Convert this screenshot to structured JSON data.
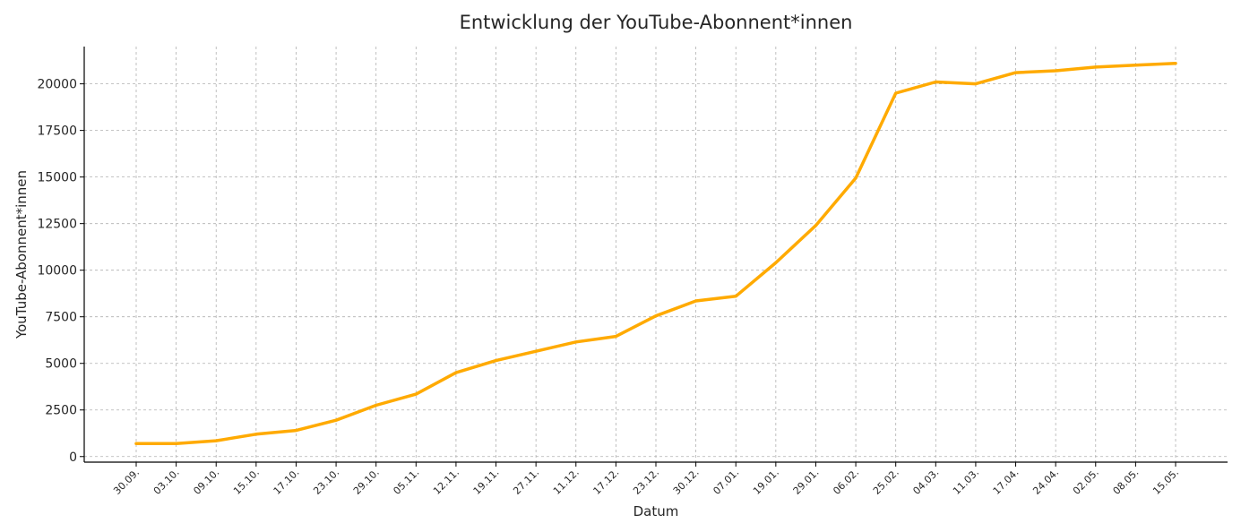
{
  "chart_data": {
    "type": "line",
    "title": "Entwicklung der YouTube-Abonnent*innen",
    "xlabel": "Datum",
    "ylabel": "YouTube-Abonnent*innen",
    "ylim": [
      -300,
      22000
    ],
    "yticks": [
      0,
      2500,
      5000,
      7500,
      10000,
      12500,
      15000,
      17500,
      20000
    ],
    "grid": true,
    "line_color": "#FFAA00",
    "categories": [
      "30.09.",
      "03.10.",
      "09.10.",
      "15.10.",
      "17.10.",
      "23.10.",
      "29.10.",
      "05.11.",
      "12.11.",
      "19.11.",
      "27.11.",
      "11.12.",
      "17.12.",
      "23.12.",
      "30.12.",
      "07.01.",
      "19.01.",
      "29.01.",
      "06.02.",
      "25.02.",
      "04.03.",
      "11.03.",
      "17.04.",
      "24.04.",
      "02.05.",
      "08.05.",
      "15.05."
    ],
    "series": [
      {
        "values": [
          700,
          700,
          850,
          1200,
          1400,
          1950,
          2750,
          3350,
          4500,
          5150,
          5650,
          6150,
          6450,
          7550,
          8350,
          8600,
          10400,
          12400,
          14950,
          19500,
          20100,
          20000,
          20600,
          20700,
          20900,
          21000,
          21100
        ]
      }
    ]
  }
}
